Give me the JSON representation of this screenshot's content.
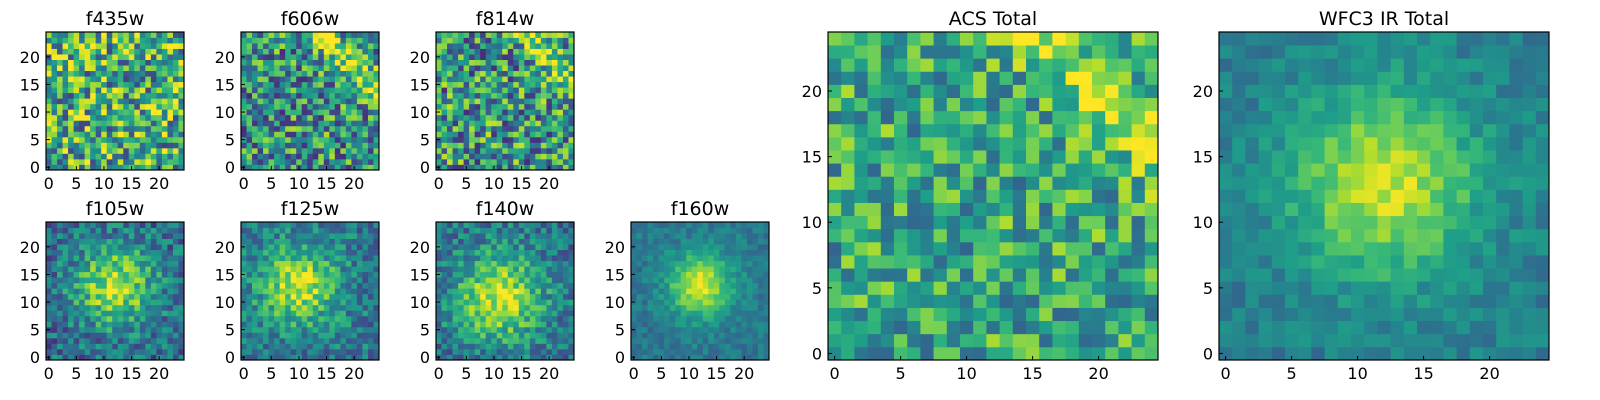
{
  "chart_data": [
    {
      "type": "heatmap",
      "title": "f435w",
      "x_ticks": [
        "0",
        "5",
        "10",
        "15",
        "20"
      ],
      "y_ticks": [
        "0",
        "5",
        "10",
        "15",
        "20"
      ],
      "xlim": [
        0,
        25
      ],
      "ylim": [
        0,
        25
      ],
      "grid_size": 25,
      "colormap": "viridis",
      "pattern": "noise",
      "params": {
        "base": 0.62,
        "noise": 0.42,
        "seed": 11
      }
    },
    {
      "type": "heatmap",
      "title": "f606w",
      "x_ticks": [
        "0",
        "5",
        "10",
        "15",
        "20"
      ],
      "y_ticks": [
        "0",
        "5",
        "10",
        "15",
        "20"
      ],
      "xlim": [
        0,
        25
      ],
      "ylim": [
        0,
        25
      ],
      "grid_size": 25,
      "colormap": "viridis",
      "pattern": "diagonal_band",
      "params": {
        "base": 0.5,
        "noise": 0.38,
        "band_center": 38,
        "band_amp": 0.45,
        "seed": 23
      }
    },
    {
      "type": "heatmap",
      "title": "f814w",
      "x_ticks": [
        "0",
        "5",
        "10",
        "15",
        "20"
      ],
      "y_ticks": [
        "0",
        "5",
        "10",
        "15",
        "20"
      ],
      "xlim": [
        0,
        25
      ],
      "ylim": [
        0,
        25
      ],
      "grid_size": 25,
      "colormap": "viridis",
      "pattern": "diagonal_band",
      "params": {
        "base": 0.52,
        "noise": 0.4,
        "band_center": 40,
        "band_amp": 0.42,
        "seed": 37
      }
    },
    {
      "type": "heatmap",
      "title": "f105w",
      "x_ticks": [
        "0",
        "5",
        "10",
        "15",
        "20"
      ],
      "y_ticks": [
        "0",
        "5",
        "10",
        "15",
        "20"
      ],
      "xlim": [
        0,
        25
      ],
      "ylim": [
        0,
        25
      ],
      "grid_size": 25,
      "colormap": "viridis",
      "pattern": "blob",
      "params": {
        "base": 0.35,
        "noise": 0.22,
        "peak": [
          12,
          13
        ],
        "sigma": 5,
        "amp": 0.55,
        "seed": 41
      }
    },
    {
      "type": "heatmap",
      "title": "f125w",
      "x_ticks": [
        "0",
        "5",
        "10",
        "15",
        "20"
      ],
      "y_ticks": [
        "0",
        "5",
        "10",
        "15",
        "20"
      ],
      "xlim": [
        0,
        25
      ],
      "ylim": [
        0,
        25
      ],
      "grid_size": 25,
      "colormap": "viridis",
      "pattern": "blob",
      "params": {
        "base": 0.4,
        "noise": 0.2,
        "peak": [
          10,
          13
        ],
        "sigma": 5,
        "amp": 0.5,
        "seed": 53
      }
    },
    {
      "type": "heatmap",
      "title": "f140w",
      "x_ticks": [
        "0",
        "5",
        "10",
        "15",
        "20"
      ],
      "y_ticks": [
        "0",
        "5",
        "10",
        "15",
        "20"
      ],
      "xlim": [
        0,
        25
      ],
      "ylim": [
        0,
        25
      ],
      "grid_size": 25,
      "colormap": "viridis",
      "pattern": "blob",
      "params": {
        "base": 0.38,
        "noise": 0.2,
        "peak": [
          11,
          11
        ],
        "sigma": 5.5,
        "amp": 0.55,
        "seed": 67
      }
    },
    {
      "type": "heatmap",
      "title": "f160w",
      "x_ticks": [
        "0",
        "5",
        "10",
        "15",
        "20"
      ],
      "y_ticks": [
        "0",
        "5",
        "10",
        "15",
        "20"
      ],
      "xlim": [
        0,
        25
      ],
      "ylim": [
        0,
        25
      ],
      "grid_size": 25,
      "colormap": "viridis",
      "pattern": "blob",
      "params": {
        "base": 0.4,
        "noise": 0.1,
        "peak": [
          12,
          13
        ],
        "sigma": 4,
        "amp": 0.55,
        "seed": 79
      }
    },
    {
      "type": "heatmap",
      "title": "ACS Total",
      "x_ticks": [
        "0",
        "5",
        "10",
        "15",
        "20"
      ],
      "y_ticks": [
        "0",
        "5",
        "10",
        "15",
        "20"
      ],
      "xlim": [
        0,
        25
      ],
      "ylim": [
        0,
        25
      ],
      "grid_size": 25,
      "colormap": "viridis",
      "pattern": "diagonal_band",
      "params": {
        "base": 0.6,
        "noise": 0.28,
        "band_center": 40,
        "band_amp": 0.3,
        "seed": 91
      }
    },
    {
      "type": "heatmap",
      "title": "WFC3 IR Total",
      "x_ticks": [
        "0",
        "5",
        "10",
        "15",
        "20"
      ],
      "y_ticks": [
        "0",
        "5",
        "10",
        "15",
        "20"
      ],
      "xlim": [
        0,
        25
      ],
      "ylim": [
        0,
        25
      ],
      "grid_size": 25,
      "colormap": "viridis",
      "pattern": "blob",
      "params": {
        "base": 0.42,
        "noise": 0.1,
        "peak": [
          12,
          13
        ],
        "sigma": 5,
        "amp": 0.5,
        "seed": 103
      }
    }
  ]
}
